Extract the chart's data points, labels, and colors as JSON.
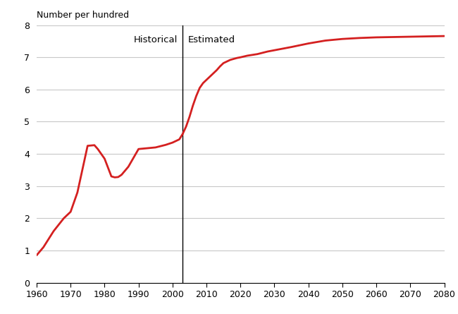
{
  "historical_x": [
    1960,
    1962,
    1965,
    1968,
    1970,
    1972,
    1975,
    1977,
    1978,
    1980,
    1982,
    1983,
    1984,
    1985,
    1987,
    1990,
    1993,
    1995,
    1998,
    2000,
    2002,
    2003
  ],
  "historical_y": [
    0.85,
    1.1,
    1.6,
    2.0,
    2.2,
    2.8,
    4.25,
    4.27,
    4.15,
    3.85,
    3.3,
    3.27,
    3.28,
    3.35,
    3.6,
    4.15,
    4.18,
    4.2,
    4.28,
    4.35,
    4.45,
    4.62
  ],
  "estimated_x": [
    2003,
    2004,
    2005,
    2006,
    2007,
    2008,
    2009,
    2010,
    2011,
    2012,
    2013,
    2014,
    2015,
    2016,
    2017,
    2018,
    2019,
    2020,
    2022,
    2025,
    2028,
    2030,
    2033,
    2035,
    2040,
    2045,
    2050,
    2055,
    2060,
    2065,
    2070,
    2075,
    2080
  ],
  "estimated_y": [
    4.62,
    4.85,
    5.15,
    5.5,
    5.8,
    6.05,
    6.2,
    6.3,
    6.4,
    6.5,
    6.6,
    6.72,
    6.82,
    6.87,
    6.92,
    6.95,
    6.98,
    7.0,
    7.05,
    7.1,
    7.18,
    7.22,
    7.28,
    7.32,
    7.43,
    7.52,
    7.57,
    7.6,
    7.62,
    7.63,
    7.64,
    7.65,
    7.66
  ],
  "line_color": "#d42020",
  "divider_x": 2003,
  "xlim": [
    1960,
    2080
  ],
  "ylim": [
    0,
    8
  ],
  "yticks": [
    0,
    1,
    2,
    3,
    4,
    5,
    6,
    7,
    8
  ],
  "xticks": [
    1960,
    1970,
    1980,
    1990,
    2000,
    2010,
    2020,
    2030,
    2040,
    2050,
    2060,
    2070,
    2080
  ],
  "ylabel": "Number per hundred",
  "historical_label": "Historical",
  "estimated_label": "Estimated",
  "background_color": "#ffffff",
  "grid_color": "#c8c8c8",
  "line_width": 2.0
}
